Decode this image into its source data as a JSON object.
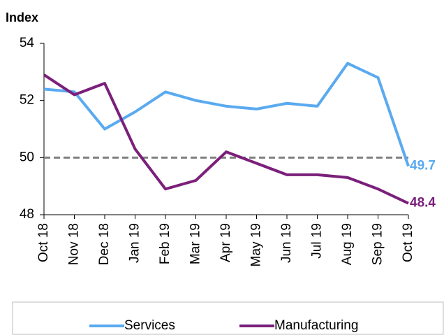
{
  "chart_data": {
    "type": "line",
    "y_axis_label": "Index",
    "categories": [
      "Oct 18",
      "Nov 18",
      "Dec 18",
      "Jan 19",
      "Feb 19",
      "Mar 19",
      "Apr 19",
      "May 19",
      "Jun 19",
      "Jul 19",
      "Aug 19",
      "Sep 19",
      "Oct 19"
    ],
    "series": [
      {
        "name": "Services",
        "color": "#5aaaf0",
        "values": [
          52.4,
          52.3,
          51.0,
          51.6,
          52.3,
          52.0,
          51.8,
          51.7,
          51.9,
          51.8,
          53.3,
          52.8,
          49.7
        ]
      },
      {
        "name": "Manufacturing",
        "color": "#7b1f7b",
        "values": [
          52.9,
          52.2,
          52.6,
          50.3,
          48.9,
          49.2,
          50.2,
          49.8,
          49.4,
          49.4,
          49.3,
          48.9,
          48.4
        ]
      }
    ],
    "reference_line": 50,
    "ylim": [
      48,
      54
    ],
    "yticks": [
      48,
      50,
      52,
      54
    ],
    "legend": "bottom"
  }
}
